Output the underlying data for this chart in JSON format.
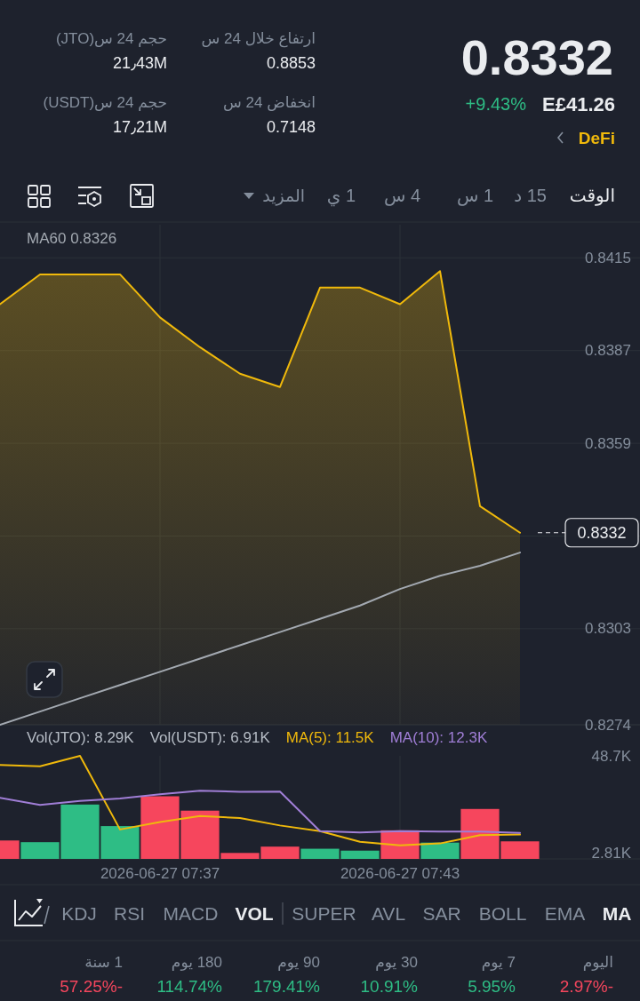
{
  "chart_data": [
    {
      "type": "other",
      "annotations": [
        "0.8332",
        "+9.43%",
        "E£41.26",
        "DeFi",
        "ارتفاع خلال 24 س",
        "0.8853",
        "انخفاض 24 س",
        "0.7148",
        "حجم 24 س(JTO)",
        "21٫43M",
        "حجم 24 س(USDT)",
        "17٫21M",
        "الوقت",
        "15 د",
        "1 س",
        "4 س",
        "1 ي",
        "المزيد"
      ]
    },
    {
      "type": "area",
      "x": [
        "2026-06-27T07:33",
        "2026-06-27T07:34",
        "2026-06-27T07:35",
        "2026-06-27T07:36",
        "2026-06-27T07:37",
        "2026-06-27T07:38",
        "2026-06-27T07:39",
        "2026-06-27T07:40",
        "2026-06-27T07:41",
        "2026-06-27T07:42",
        "2026-06-27T07:43",
        "2026-06-27T07:44",
        "2026-06-27T07:45",
        "2026-06-27T07:46"
      ],
      "xlim": [
        "2026-06-27T07:33",
        "2026-06-27T07:49"
      ],
      "xticks": [
        {
          "value": "2026-06-27T07:37",
          "label": null
        },
        {
          "value": "2026-06-27T07:43",
          "label": null
        }
      ],
      "ylim": [
        0.8274,
        0.8425
      ],
      "yticks": [
        0.8415,
        0.8387,
        0.8359,
        {
          "value": 0.8331,
          "label": null
        },
        0.8303,
        0.8274
      ],
      "tick_labels": "y",
      "grid": true,
      "legend": "top left",
      "series": [
        {
          "type": "area",
          "color": "#f0b90b",
          "values": [
            0.8401,
            0.841,
            0.841,
            0.841,
            0.8397,
            0.8388,
            0.838,
            0.8376,
            0.8406,
            0.8406,
            0.8401,
            0.8411,
            0.834,
            0.8332
          ]
        },
        {
          "type": "line",
          "name": "MA60 0.8326",
          "color": "#a3a9b1",
          "values": [
            0.8274,
            0.8278,
            0.8282,
            0.8286,
            0.829,
            0.8294,
            0.8298,
            0.8302,
            0.8306,
            0.831,
            0.8315,
            0.8319,
            0.8322,
            0.8326
          ]
        }
      ],
      "ref_lines": [
        {
          "axis": "y",
          "value": 0.8332,
          "label": "0.8332",
          "line_style": "dashed",
          "color": "#eaecef"
        }
      ]
    },
    {
      "type": "bar",
      "x": [
        "2026-06-27T07:33",
        "2026-06-27T07:34",
        "2026-06-27T07:35",
        "2026-06-27T07:36",
        "2026-06-27T07:37",
        "2026-06-27T07:38",
        "2026-06-27T07:39",
        "2026-06-27T07:40",
        "2026-06-27T07:41",
        "2026-06-27T07:42",
        "2026-06-27T07:43",
        "2026-06-27T07:44",
        "2026-06-27T07:45",
        "2026-06-27T07:46"
      ],
      "xlim": [
        "2026-06-27T07:33",
        "2026-06-27T07:49"
      ],
      "xticks": [
        {
          "value": "2026-06-27T07:37",
          "label": "2026-06-27 07:37"
        },
        {
          "value": "2026-06-27T07:43",
          "label": "2026-06-27 07:43"
        }
      ],
      "ylim": [
        0,
        48.7
      ],
      "yticks": [
        {
          "value": 48.7,
          "label": "48.7K"
        },
        {
          "value": 2.81,
          "label": "2.81K"
        }
      ],
      "grid": "x",
      "legend": "top",
      "annotations": [
        "Vol(JTO): 8.29K",
        "Vol(USDT): 6.91K"
      ],
      "series": [
        {
          "type": "bar",
          "colors": [
            "#f6465d",
            "#2ebd85",
            "#2ebd85",
            "#2ebd85",
            "#f6465d",
            "#f6465d",
            "#f6465d",
            "#f6465d",
            "#2ebd85",
            "#2ebd85",
            "#f6465d",
            "#2ebd85",
            "#f6465d",
            "#f6465d"
          ],
          "values": [
            8.7,
            7.9,
            25.7,
            15.5,
            29.6,
            22.8,
            2.81,
            5.8,
            4.8,
            3.9,
            13.5,
            7.7,
            23.6,
            8.29
          ]
        },
        {
          "type": "line",
          "name": "MA(5): 11.5K",
          "color": "#f0b90b",
          "values": [
            44.4,
            43.8,
            48.7,
            13.9,
            17.4,
            20.3,
            19.3,
            15.8,
            13.1,
            8.1,
            6.4,
            7.3,
            11.2,
            11.5
          ]
        },
        {
          "type": "line",
          "name": "MA(10): 12.3K",
          "color": "#a07ed6",
          "values": [
            28.9,
            25.5,
            27.4,
            28.6,
            30.5,
            32.2,
            31.7,
            31.8,
            13.1,
            12.5,
            13.1,
            12.9,
            12.9,
            12.3
          ]
        }
      ]
    },
    {
      "type": "other",
      "annotations": [
        "KDJ",
        "RSI",
        "MACD",
        "VOL",
        "SUPER",
        "AVL",
        "SAR",
        "BOLL",
        "EMA",
        "MA",
        "1 سنة",
        "57.25%-",
        "180 يوم",
        "114.74%",
        "90 يوم",
        "179.41%",
        "30 يوم",
        "10.91%",
        "7 يوم",
        "5.95%",
        "اليوم",
        "2.97%-"
      ]
    }
  ]
}
